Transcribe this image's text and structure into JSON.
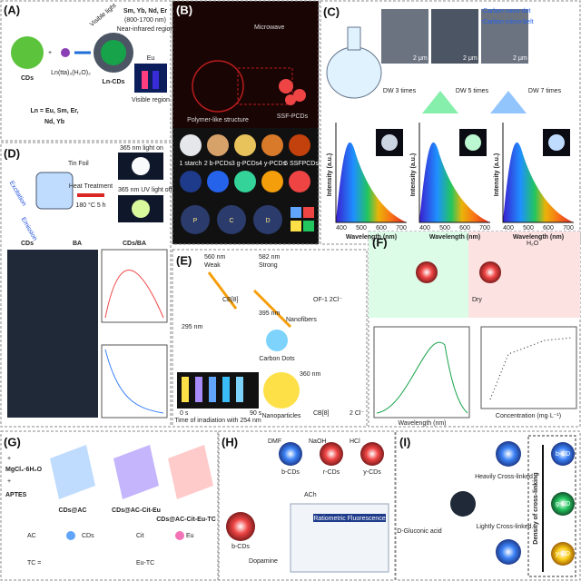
{
  "panels": [
    {
      "texts": [
        "(A)",
        "CDs",
        "+",
        "Ln(tta)₃(H₂O)₂",
        "Ln-CDs",
        "Visible light",
        "Sm, Yb, Nd, Er",
        "(800-1700 nm)",
        "Near-infrared region",
        "Eu",
        "Visible region",
        "Ln = Eu, Sm, Er,",
        "Nd, Yb"
      ]
    },
    {
      "texts": [
        "(B)",
        "Microwave",
        "Polymer-like structure",
        "SSF-PCDs",
        "1 starch",
        "2 b-PCDs",
        "3 g-PCDs",
        "4 y-PCDs",
        "5 SSFPCDs",
        "P",
        "C",
        "D"
      ]
    },
    {
      "texts": [
        "(C)",
        ":Carbon nano-dot",
        ":Carbon micro-belt",
        "2 μm",
        "2 μm",
        "2 μm",
        "DW 3 times",
        "DW 5 times",
        "DW 7 times"
      ],
      "spectra": [
        {
          "ylabel": "Intensity (a.u.)",
          "xlabel": "Wavelength (nm)",
          "xticks": [
            "400",
            "500",
            "600",
            "700"
          ]
        },
        {
          "ylabel": "Intensity (a.u.)",
          "xlabel": "Wavelength (nm)",
          "xticks": [
            "400",
            "500",
            "600",
            "700"
          ]
        },
        {
          "ylabel": "Intensity (a.u.)",
          "xlabel": "Wavelength (nm)",
          "xticks": [
            "400",
            "500",
            "600",
            "700"
          ]
        }
      ]
    },
    {
      "texts": [
        "(D)",
        "Tin Foil",
        "365 nm light on",
        "Heat Treatment",
        "180 °C 5 h",
        "365 nm UV light off",
        "Excitation",
        "Emission",
        "CDs",
        "BA",
        "CDs/BA"
      ]
    },
    {
      "texts": [
        "(E)",
        "560 nm",
        "Weak",
        "582 nm",
        "Strong",
        "CB[8]",
        "395 nm",
        "295 nm",
        "Nanofibers",
        "Carbon Dots",
        "OF-1 2Cl⁻",
        "0 s",
        "90 s",
        "Time of irradiation with 254 nm",
        "Nanoparticles",
        "360 nm",
        "CB[8]",
        "2 Cl⁻"
      ]
    },
    {
      "texts": [
        "(F)",
        "Dry",
        "H₂O",
        "Wavelength (nm)",
        "Concentration (mg·L⁻¹)"
      ]
    },
    {
      "texts": [
        "(G)",
        "+",
        "MgCl₂·6H₂O",
        "+",
        "APTES",
        "CDs@AC",
        "CDs@AC-Cit-Eu",
        "CDs@AC-Cit-Eu-TC",
        "AC",
        "CDs",
        "Cit",
        "Eu",
        "TC =",
        "Eu-TC"
      ]
    },
    {
      "texts": [
        "(H)",
        "DMF",
        "NaOH",
        "HCl",
        "b-CDs",
        "r-CDs",
        "y-CDs",
        "b-CDs",
        "ACh",
        "Dopamine",
        "Ratiometric Fluorescence"
      ]
    },
    {
      "texts": [
        "(I)",
        "D-Gluconic acid",
        "Heavily Cross-linked",
        "Lightly Cross-linked",
        "Density of cross-linking",
        "b-CD",
        "g-CD",
        "y-CD"
      ]
    }
  ]
}
